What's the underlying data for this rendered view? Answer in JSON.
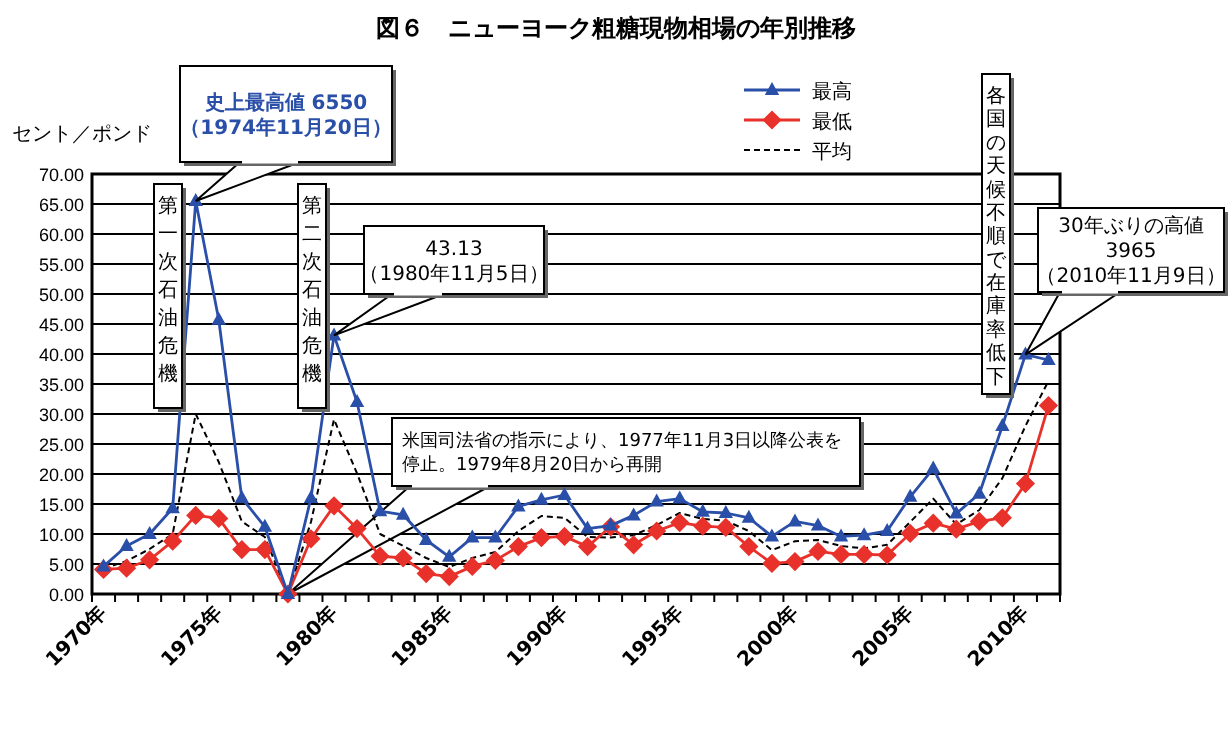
{
  "chart_data": {
    "type": "line",
    "title": "図６　ニューヨーク粗糖現物相場の年別推移",
    "ylabel": "セント／ポンド",
    "categories": [
      "1970年",
      null,
      null,
      null,
      null,
      "1975年",
      null,
      null,
      null,
      null,
      "1980年",
      null,
      null,
      null,
      null,
      "1985年",
      null,
      null,
      null,
      null,
      "1990年",
      null,
      null,
      null,
      null,
      "1995年",
      null,
      null,
      null,
      null,
      "2000年",
      null,
      null,
      null,
      null,
      "2005年",
      null,
      null,
      null,
      null,
      "2010年",
      null
    ],
    "series": [
      {
        "name": "最高",
        "color": "#2a4fa8",
        "marker": "triangle",
        "line_style": "solid",
        "values": [
          4.6,
          8.0,
          10.0,
          14.3,
          65.5,
          45.7,
          16.0,
          11.2,
          0,
          16.0,
          43.1,
          32.0,
          13.8,
          13.2,
          9.0,
          6.2,
          9.4,
          9.4,
          14.6,
          15.7,
          16.5,
          10.9,
          11.4,
          13.1,
          15.4,
          15.9,
          13.7,
          13.5,
          12.7,
          9.6,
          12.1,
          11.4,
          9.6,
          9.8,
          10.5,
          16.2,
          20.9,
          13.4,
          16.7,
          28.0,
          39.9,
          39.0
        ]
      },
      {
        "name": "最低",
        "color": "#e8312a",
        "marker": "diamond",
        "line_style": "solid",
        "values": [
          4.1,
          4.3,
          5.7,
          8.8,
          13.1,
          12.6,
          7.4,
          7.4,
          0,
          9.2,
          14.7,
          10.9,
          6.3,
          6.0,
          3.4,
          2.9,
          4.6,
          5.6,
          7.9,
          9.4,
          9.6,
          7.9,
          11.2,
          8.2,
          10.5,
          11.9,
          11.3,
          11.1,
          7.9,
          5.1,
          5.4,
          7.1,
          6.6,
          6.6,
          6.5,
          10.1,
          11.8,
          10.8,
          12.1,
          12.7,
          18.4,
          31.4
        ]
      },
      {
        "name": "平均",
        "color": "#000000",
        "marker": "none",
        "line_style": "dashed",
        "values": [
          4.2,
          5.5,
          7.5,
          10.0,
          30.0,
          22.0,
          12.1,
          9.5,
          0,
          12.0,
          29.1,
          20.1,
          10.0,
          8.0,
          6.0,
          4.5,
          6.0,
          7.0,
          10.5,
          13.0,
          12.7,
          9.5,
          9.4,
          9.8,
          11.5,
          13.5,
          12.5,
          12.2,
          10.5,
          7.3,
          8.8,
          9.0,
          8.0,
          7.6,
          8.2,
          12.0,
          15.9,
          11.6,
          14.0,
          19.3,
          28.0,
          35.5
        ]
      }
    ],
    "ylim": [
      0,
      70
    ],
    "yticks": [
      {
        "value": 0,
        "label": "0.00"
      },
      {
        "value": 5,
        "label": "5.00"
      },
      {
        "value": 10,
        "label": "10.00"
      },
      {
        "value": 15,
        "label": "15.00"
      },
      {
        "value": 20,
        "label": "20.00"
      },
      {
        "value": 25,
        "label": "25.00"
      },
      {
        "value": 30,
        "label": "30.00"
      },
      {
        "value": 35,
        "label": "35.00"
      },
      {
        "value": 40,
        "label": "40.00"
      },
      {
        "value": 45,
        "label": "45.00"
      },
      {
        "value": 50,
        "label": "50.00"
      },
      {
        "value": 55,
        "label": "55.00"
      },
      {
        "value": 60,
        "label": "60.00"
      },
      {
        "value": 65,
        "label": "65.00"
      },
      {
        "value": 70,
        "label": "70.00"
      }
    ],
    "grid": "y",
    "legend": "top",
    "annotations": [
      "史上最高値 6550\n（1974年11月20日）",
      "第一次石油危機",
      "第二次石油危機",
      "43.13\n（1980年11月5日）",
      "米国司法省の指示により、1977年11月3日以降公表を停止。1979年8月20日から再開",
      "各国の天候不順で在庫率低下",
      "30年ぶりの高値\n3965\n（2010年11月9日）"
    ]
  }
}
